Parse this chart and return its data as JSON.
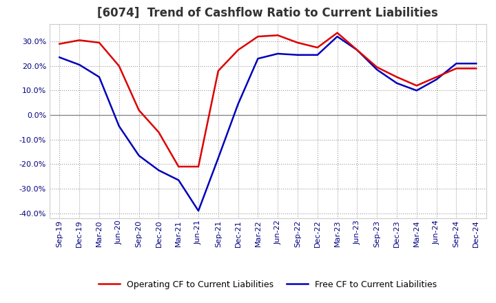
{
  "title": "[6074]  Trend of Cashflow Ratio to Current Liabilities",
  "x_labels": [
    "Sep-19",
    "Dec-19",
    "Mar-20",
    "Jun-20",
    "Sep-20",
    "Dec-20",
    "Mar-21",
    "Jun-21",
    "Sep-21",
    "Dec-21",
    "Mar-22",
    "Jun-22",
    "Sep-22",
    "Dec-22",
    "Mar-23",
    "Jun-23",
    "Sep-23",
    "Dec-23",
    "Mar-24",
    "Jun-24",
    "Sep-24",
    "Dec-24"
  ],
  "operating_cf": [
    0.29,
    0.305,
    0.295,
    0.2,
    0.02,
    -0.07,
    -0.21,
    -0.21,
    0.18,
    0.265,
    0.32,
    0.325,
    0.295,
    0.275,
    0.335,
    0.265,
    0.195,
    0.155,
    0.12,
    0.155,
    0.19,
    0.19
  ],
  "free_cf": [
    0.235,
    0.205,
    0.155,
    -0.045,
    -0.165,
    -0.225,
    -0.265,
    -0.39,
    -0.175,
    0.045,
    0.23,
    0.25,
    0.245,
    0.245,
    0.32,
    0.265,
    0.185,
    0.13,
    0.1,
    0.145,
    0.21,
    0.21
  ],
  "operating_color": "#dd0000",
  "free_color": "#0000bb",
  "background_color": "#ffffff",
  "grid_color": "#999999",
  "ylim": [
    -0.42,
    0.37
  ],
  "yticks": [
    -0.4,
    -0.3,
    -0.2,
    -0.1,
    0.0,
    0.1,
    0.2,
    0.3
  ],
  "legend_operating": "Operating CF to Current Liabilities",
  "legend_free": "Free CF to Current Liabilities",
  "title_fontsize": 12,
  "tick_fontsize": 8,
  "legend_fontsize": 9,
  "line_width": 1.8,
  "title_color": "#333333"
}
